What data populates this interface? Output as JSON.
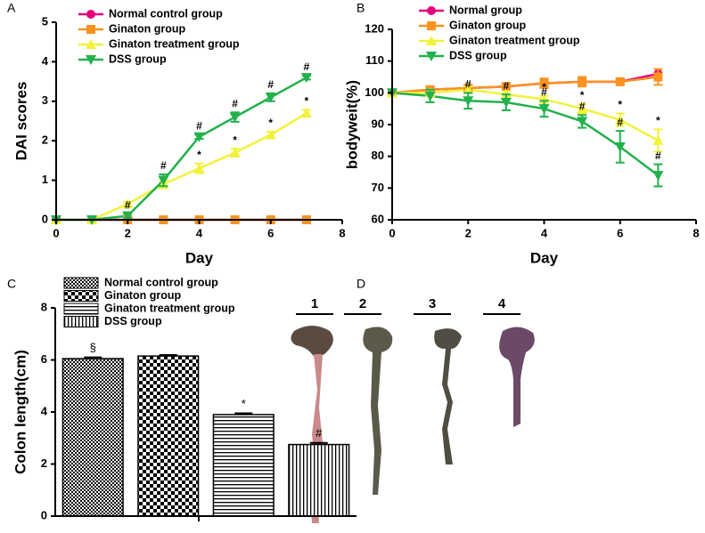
{
  "panels": [
    "A",
    "B",
    "C",
    "D"
  ],
  "chart_data": [
    {
      "type": "line",
      "xlabel": "Day",
      "ylabel": "DAI scores",
      "xlim": [
        0,
        8
      ],
      "xticks": [
        0,
        2,
        4,
        6,
        8
      ],
      "ylim": [
        0,
        5
      ],
      "yticks": [
        0,
        1,
        2,
        3,
        4,
        5
      ],
      "x": [
        0,
        1,
        2,
        3,
        4,
        5,
        6,
        7
      ],
      "series": [
        {
          "name": "Normal control group",
          "color": "#e6007e",
          "marker": "circle",
          "values": [
            0,
            0,
            0,
            0,
            0,
            0,
            0,
            0
          ]
        },
        {
          "name": "Ginaton group",
          "color": "#f7931e",
          "marker": "square",
          "values": [
            0,
            0,
            0,
            0,
            0,
            0,
            0,
            0
          ]
        },
        {
          "name": "Ginaton treatment group",
          "color": "#f2f23a",
          "marker": "triangle-up",
          "values": [
            0,
            0,
            0.4,
            0.9,
            1.3,
            1.7,
            2.15,
            2.7
          ],
          "errors": [
            0,
            0,
            0.05,
            0.1,
            0.12,
            0.1,
            0.08,
            0.08
          ],
          "annotations": [
            null,
            null,
            null,
            null,
            "*",
            "*",
            "*",
            "*"
          ]
        },
        {
          "name": "DSS  group",
          "color": "#22b14c",
          "marker": "triangle-down",
          "values": [
            0,
            0,
            0.1,
            1.0,
            2.1,
            2.6,
            3.1,
            3.6
          ],
          "errors": [
            0,
            0,
            0.05,
            0.15,
            0.05,
            0.12,
            0.1,
            0.05
          ],
          "annotations": [
            null,
            null,
            "#",
            "#",
            "#",
            "#",
            "#",
            "#"
          ]
        }
      ]
    },
    {
      "type": "line",
      "xlabel": "Day",
      "ylabel": "bodyweit(%)",
      "xlim": [
        0,
        8
      ],
      "xticks": [
        0,
        2,
        4,
        6,
        8
      ],
      "ylim": [
        60,
        120
      ],
      "yticks": [
        60,
        70,
        80,
        90,
        100,
        110,
        120
      ],
      "x": [
        0,
        1,
        2,
        3,
        4,
        5,
        6,
        7
      ],
      "series": [
        {
          "name": "Normal group",
          "color": "#e6007e",
          "marker": "circle",
          "values": [
            100,
            101,
            101.5,
            102,
            103,
            103.5,
            103.5,
            106
          ]
        },
        {
          "name": "Ginaton group",
          "color": "#f7931e",
          "marker": "square",
          "values": [
            100,
            101,
            101.5,
            102,
            103,
            103.5,
            103.5,
            105
          ],
          "errors": [
            0,
            1,
            1,
            1,
            1.5,
            1.5,
            1,
            2.5
          ]
        },
        {
          "name": "Ginaton treatment group",
          "color": "#f2f23a",
          "marker": "triangle-up",
          "values": [
            100,
            100,
            101,
            99.5,
            98,
            95,
            91.5,
            85
          ],
          "errors": [
            0,
            1,
            1,
            1,
            1,
            1.5,
            2,
            3.5
          ],
          "annotations": [
            null,
            null,
            null,
            null,
            "*",
            "*",
            "*",
            "*"
          ]
        },
        {
          "name": "DSS  group",
          "color": "#22b14c",
          "marker": "triangle-down",
          "values": [
            100,
            99,
            97.5,
            97,
            95,
            91,
            83,
            74
          ],
          "errors": [
            0,
            2,
            2.5,
            2.5,
            2.5,
            2,
            5,
            3.5
          ],
          "annotations": [
            null,
            null,
            "#",
            "#",
            "#",
            "#",
            "#",
            "#"
          ]
        }
      ]
    },
    {
      "type": "bar",
      "ylabel": "Colon length(cm)",
      "ylim": [
        0,
        8
      ],
      "yticks": [
        0,
        2,
        4,
        6,
        8
      ],
      "series": [
        {
          "name": "Normal control group",
          "pattern": "checker-fine",
          "values": [
            6.05
          ],
          "errors": [
            0.05
          ],
          "annotations": [
            "§"
          ]
        },
        {
          "name": "Ginaton group",
          "pattern": "checker",
          "values": [
            6.15
          ],
          "errors": [
            0.04
          ],
          "annotations": [
            null
          ]
        },
        {
          "name": "Ginaton treatment group",
          "pattern": "horizontal",
          "values": [
            3.9
          ],
          "errors": [
            0.05
          ],
          "annotations": [
            "*"
          ]
        },
        {
          "name": "DSS group",
          "pattern": "vertical",
          "values": [
            2.75
          ],
          "errors": [
            0.06
          ],
          "annotations": [
            "#"
          ]
        }
      ]
    }
  ],
  "photo": {
    "labels": [
      "1",
      "2",
      "3",
      "4"
    ]
  }
}
